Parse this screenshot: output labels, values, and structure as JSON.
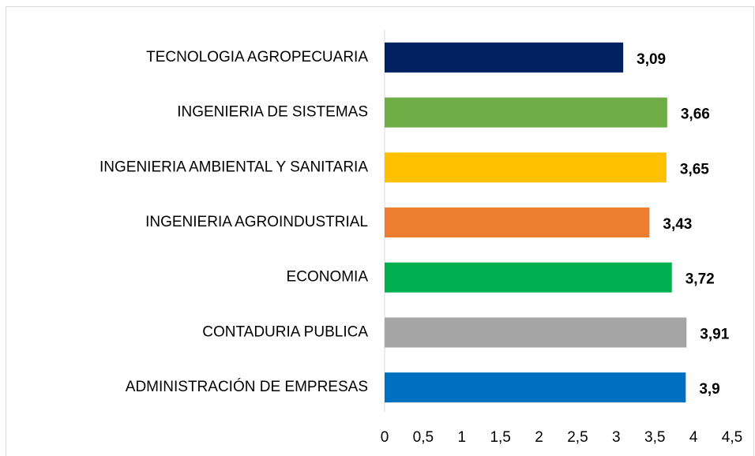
{
  "chart_data": {
    "type": "hbar",
    "categories": [
      "TECNOLOGIA AGROPECUARIA",
      "INGENIERIA DE SISTEMAS",
      "INGENIERIA AMBIENTAL Y SANITARIA",
      "INGENIERIA AGROINDUSTRIAL",
      "ECONOMIA",
      "CONTADURIA PUBLICA",
      "ADMINISTRACIÓN DE EMPRESAS"
    ],
    "values": [
      3.09,
      3.66,
      3.65,
      3.43,
      3.72,
      3.91,
      3.9
    ],
    "value_labels": [
      "3,09",
      "3,66",
      "3,65",
      "3,43",
      "3,72",
      "3,91",
      "3,9"
    ],
    "colors": [
      "#002060",
      "#70ad47",
      "#ffc000",
      "#ed7d31",
      "#00b050",
      "#a5a5a5",
      "#0070c0"
    ],
    "xlim": [
      0,
      4.5
    ],
    "xticks": [
      0,
      {
        "value": 0.5,
        "label": "0,5"
      },
      1,
      {
        "value": 1.5,
        "label": "1,5"
      },
      2,
      {
        "value": 2.5,
        "label": "2,5"
      },
      3,
      {
        "value": 3.5,
        "label": "3,5"
      },
      4,
      {
        "value": 4.5,
        "label": "4,5"
      }
    ]
  }
}
